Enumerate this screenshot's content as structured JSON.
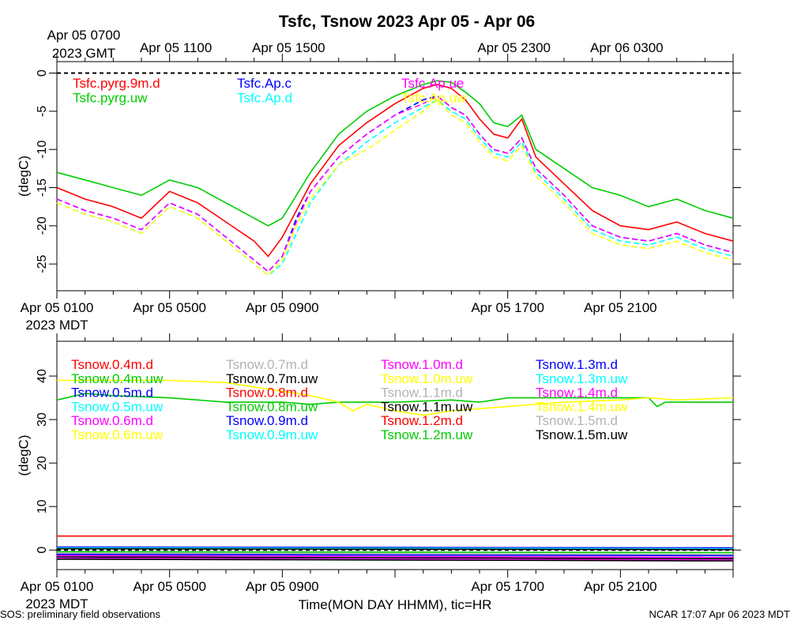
{
  "chart_data": [
    {
      "type": "line",
      "title": "Tsfc, Tsnow 2023 Apr 05 - Apr 06",
      "ylabel": "(degC)",
      "ylim": [
        -28.5,
        1.5
      ],
      "yticks": [
        0,
        -5,
        -10,
        -15,
        -20,
        -25
      ],
      "ytick_labels": [
        "0",
        "-5",
        "-10",
        "-15",
        "-20",
        "-25"
      ],
      "xlim_hours": [
        0,
        24
      ],
      "top_axis_ticks": [
        {
          "hour": 0,
          "line1": "Apr 05 0700",
          "line2": "2023 GMT"
        },
        {
          "hour": 4,
          "line1": "Apr 05 1100",
          "line2": ""
        },
        {
          "hour": 8,
          "line1": "Apr 05 1500",
          "line2": ""
        },
        {
          "hour": 16,
          "line1": "Apr 05 2300",
          "line2": ""
        },
        {
          "hour": 20,
          "line1": "Apr 06 0300",
          "line2": ""
        }
      ],
      "bottom_axis_ticks": [
        {
          "hour": 0,
          "line1": "Apr 05 0100",
          "line2": "2023 MDT"
        },
        {
          "hour": 4,
          "line1": "Apr 05 0500",
          "line2": ""
        },
        {
          "hour": 8,
          "line1": "Apr 05 0900",
          "line2": ""
        },
        {
          "hour": 16,
          "line1": "Apr 05 1700",
          "line2": ""
        },
        {
          "hour": 20,
          "line1": "Apr 05 2100",
          "line2": ""
        }
      ],
      "reference_line": 0,
      "legend": [
        {
          "name": "Tsfc.pyrg.9m.d",
          "color": "#ff0000"
        },
        {
          "name": "Tsfc.pyrg.uw",
          "color": "#00cc00"
        },
        {
          "name": "Tsfc.Ap.c",
          "color": "#0000ff"
        },
        {
          "name": "Tsfc.Ap.d",
          "color": "#00ffff"
        },
        {
          "name": "Tsfc.Ap.ue",
          "color": "#ff00ff"
        },
        {
          "name": "Tsfc.Ap.uw",
          "color": "#ffff00"
        }
      ],
      "series": [
        {
          "name": "Tsfc.pyrg.uw",
          "color": "#00cc00",
          "style": "solid",
          "x": [
            0,
            1,
            2,
            3,
            4,
            5,
            6,
            7,
            7.5,
            8,
            8.5,
            9,
            10,
            11,
            12,
            13,
            13.5,
            14,
            14.5,
            15,
            15.5,
            16,
            16.5,
            17,
            18,
            19,
            20,
            21,
            22,
            23,
            24
          ],
          "values": [
            -13,
            -14,
            -15,
            -16,
            -14,
            -15,
            -17,
            -19,
            -20,
            -19,
            -16,
            -13,
            -8,
            -5,
            -3,
            -1.5,
            -1,
            -1.2,
            -2.5,
            -4,
            -6.5,
            -7,
            -5.5,
            -10,
            -12.5,
            -15,
            -16,
            -17.5,
            -16.5,
            -18,
            -19
          ]
        },
        {
          "name": "Tsfc.pyrg.9m.d",
          "color": "#ff0000",
          "style": "solid",
          "x": [
            0,
            1,
            2,
            3,
            4,
            5,
            6,
            7,
            7.5,
            8,
            8.5,
            9,
            10,
            11,
            12,
            13,
            13.5,
            14,
            14.5,
            15,
            15.5,
            16,
            16.5,
            17,
            18,
            19,
            20,
            21,
            22,
            23,
            24
          ],
          "values": [
            -15,
            -16.5,
            -17.5,
            -19,
            -15.5,
            -17,
            -19.5,
            -22,
            -24,
            -21.5,
            -18,
            -14.5,
            -9.5,
            -6.5,
            -4,
            -2,
            -1.5,
            -2,
            -3.5,
            -6,
            -8,
            -8.5,
            -6,
            -11,
            -14.5,
            -18,
            -20,
            -20.5,
            -19.5,
            -21,
            -22
          ]
        },
        {
          "name": "Tsfc.Ap.c",
          "color": "#0000ff",
          "style": "dashed",
          "x": [
            0,
            1,
            2,
            3,
            4,
            5,
            6,
            7,
            7.5,
            8,
            8.5,
            9,
            10,
            11,
            12,
            13,
            13.5,
            14,
            14.5,
            15,
            15.5,
            16,
            16.5,
            17,
            18,
            19,
            20,
            21,
            22,
            23,
            24
          ],
          "values": [
            -16.5,
            -18,
            -19,
            -20.5,
            -17,
            -18.5,
            -21.5,
            -24.5,
            -26,
            -24,
            -19,
            -15.5,
            -11,
            -8,
            -5.5,
            -3.5,
            -3,
            -4.5,
            -5.5,
            -8,
            -10,
            -10.5,
            -8.5,
            -12.5,
            -16,
            -20,
            -21.5,
            -22,
            -21,
            -22.5,
            -23.5
          ]
        },
        {
          "name": "Tsfc.Ap.d",
          "color": "#00ffff",
          "style": "dashed",
          "x": [
            0,
            1,
            2,
            3,
            4,
            5,
            6,
            7,
            7.5,
            8,
            8.5,
            9,
            10,
            11,
            12,
            13,
            13.5,
            14,
            14.5,
            15,
            15.5,
            16,
            16.5,
            17,
            18,
            19,
            20,
            21,
            22,
            23,
            24
          ],
          "values": [
            -17,
            -18.5,
            -19.5,
            -21,
            -17.5,
            -19,
            -22,
            -25,
            -26.5,
            -25,
            -21,
            -17,
            -12,
            -9,
            -6.5,
            -4.5,
            -3.5,
            -5,
            -6,
            -8.5,
            -10.5,
            -11,
            -9,
            -13,
            -16.5,
            -20.5,
            -22,
            -22.5,
            -21.5,
            -23,
            -24
          ]
        },
        {
          "name": "Tsfc.Ap.ue",
          "color": "#ff00ff",
          "style": "dashed",
          "x": [
            0,
            1,
            2,
            3,
            4,
            5,
            6,
            7,
            7.5,
            8,
            8.5,
            9,
            10,
            11,
            12,
            13,
            13.5,
            14,
            14.5,
            15,
            15.5,
            16,
            16.5,
            17,
            18,
            19,
            20,
            21,
            22,
            23,
            24
          ],
          "values": [
            -16.5,
            -18,
            -19,
            -20.5,
            -17,
            -18.5,
            -21.5,
            -24.5,
            -26,
            -24,
            -19.5,
            -15.5,
            -11,
            -8,
            -5.5,
            -4,
            -3,
            -4.5,
            -5.5,
            -8,
            -10,
            -10.5,
            -8.5,
            -12.5,
            -16,
            -20,
            -21.5,
            -22,
            -21,
            -22.5,
            -23.5
          ]
        },
        {
          "name": "Tsfc.Ap.uw",
          "color": "#ffff00",
          "style": "dashed",
          "x": [
            0,
            1,
            2,
            3,
            4,
            5,
            6,
            7,
            7.5,
            8,
            8.5,
            9,
            10,
            11,
            12,
            13,
            13.5,
            14,
            14.5,
            15,
            15.5,
            16,
            16.5,
            17,
            18,
            19,
            20,
            21,
            22,
            23,
            24
          ],
          "values": [
            -17,
            -18.5,
            -19.5,
            -21,
            -17.5,
            -19,
            -22,
            -25,
            -26.5,
            -24.5,
            -20,
            -16.5,
            -12,
            -10,
            -7.5,
            -5,
            -3.5,
            -5.5,
            -6.5,
            -9,
            -11,
            -11.5,
            -9.5,
            -13.5,
            -17,
            -21,
            -22.5,
            -23,
            -22,
            -23.5,
            -24.5
          ]
        }
      ]
    },
    {
      "type": "line",
      "ylabel": "(degC)",
      "ylim": [
        -4.5,
        48
      ],
      "yticks": [
        0,
        10,
        20,
        30,
        40
      ],
      "ytick_labels": [
        "0",
        "10",
        "20",
        "30",
        "40"
      ],
      "xlim_hours": [
        0,
        24
      ],
      "bottom_axis_ticks": [
        {
          "hour": 0,
          "line1": "Apr 05 0100",
          "line2": "2023 MDT"
        },
        {
          "hour": 4,
          "line1": "Apr 05 0500",
          "line2": ""
        },
        {
          "hour": 8,
          "line1": "Apr 05 0900",
          "line2": ""
        },
        {
          "hour": 16,
          "line1": "Apr 05 1700",
          "line2": ""
        },
        {
          "hour": 20,
          "line1": "Apr 05 2100",
          "line2": ""
        }
      ],
      "reference_line": 0,
      "legend": [
        {
          "name": "Tsnow.0.4m.d",
          "color": "#ff0000"
        },
        {
          "name": "Tsnow.0.4m.uw",
          "color": "#00cc00"
        },
        {
          "name": "Tsnow.0.5m.d",
          "color": "#0000ff"
        },
        {
          "name": "Tsnow.0.5m.uw",
          "color": "#00ffff"
        },
        {
          "name": "Tsnow.0.6m.d",
          "color": "#ff00ff"
        },
        {
          "name": "Tsnow.0.6m.uw",
          "color": "#ffff00"
        },
        {
          "name": "Tsnow.0.7m.d",
          "color": "#b3b3b3"
        },
        {
          "name": "Tsnow.0.7m.uw",
          "color": "#000000"
        },
        {
          "name": "Tsnow.0.8m.d",
          "color": "#ff0000"
        },
        {
          "name": "Tsnow.0.8m.uw",
          "color": "#00cc00"
        },
        {
          "name": "Tsnow.0.9m.d",
          "color": "#0000ff"
        },
        {
          "name": "Tsnow.0.9m.uw",
          "color": "#00ffff"
        },
        {
          "name": "Tsnow.1.0m.d",
          "color": "#ff00ff"
        },
        {
          "name": "Tsnow.1.0m.uw",
          "color": "#ffff00"
        },
        {
          "name": "Tsnow.1.1m.d",
          "color": "#b3b3b3"
        },
        {
          "name": "Tsnow.1.1m.uw",
          "color": "#000000"
        },
        {
          "name": "Tsnow.1.2m.d",
          "color": "#ff0000"
        },
        {
          "name": "Tsnow.1.2m.uw",
          "color": "#00cc00"
        },
        {
          "name": "Tsnow.1.3m.d",
          "color": "#0000ff"
        },
        {
          "name": "Tsnow.1.3m.uw",
          "color": "#00ffff"
        },
        {
          "name": "Tsnow.1.4m.d",
          "color": "#ff00ff"
        },
        {
          "name": "Tsnow.1.4m.uw",
          "color": "#ffff00"
        },
        {
          "name": "Tsnow.1.5m.d",
          "color": "#b3b3b3"
        },
        {
          "name": "Tsnow.1.5m.uw",
          "color": "#000000"
        }
      ],
      "series": [
        {
          "name": "Tsnow.0.4m.uw",
          "color": "#00cc00",
          "x": [
            0,
            1,
            2,
            4,
            6,
            8,
            9,
            10,
            12,
            14,
            15,
            16,
            18,
            20,
            21,
            21.3,
            21.6,
            22,
            24
          ],
          "values": [
            34.5,
            36,
            35.5,
            35,
            34,
            34,
            33.5,
            34,
            34,
            34.5,
            34,
            35,
            35,
            35,
            35,
            33,
            34,
            34,
            34
          ]
        },
        {
          "name": "Tsnow.0.6m.uw",
          "color": "#ffff00",
          "x": [
            0,
            2,
            4,
            6,
            8,
            9,
            10,
            10.5,
            11,
            12,
            13,
            14,
            15,
            16,
            18,
            20,
            21,
            22,
            24
          ],
          "values": [
            39,
            39,
            39,
            38.5,
            36.5,
            35.5,
            34,
            32,
            33.5,
            32,
            31,
            32,
            32.5,
            33,
            34,
            34.5,
            35,
            34.5,
            35
          ]
        },
        {
          "name": "Tsnow.0.4m.d",
          "color": "#ff0000",
          "x": [
            0,
            24
          ],
          "values": [
            3.2,
            3.2
          ]
        },
        {
          "name": "Tsnow.0.5m.d",
          "color": "#0000ff",
          "x": [
            0,
            24
          ],
          "values": [
            0.7,
            0.5
          ]
        },
        {
          "name": "Tsnow.0.5m.uw",
          "color": "#00ffff",
          "x": [
            0,
            24
          ],
          "values": [
            0.5,
            0.3
          ]
        },
        {
          "name": "Tsnow.0.7m.uw",
          "color": "#000000",
          "x": [
            0,
            24
          ],
          "values": [
            0.3,
            0.1
          ]
        },
        {
          "name": "Tsnow.0.8m.uw",
          "color": "#00cc00",
          "x": [
            0,
            24
          ],
          "values": [
            -0.4,
            -0.6
          ]
        },
        {
          "name": "Tsnow.0.7m.d",
          "color": "#b3b3b3",
          "x": [
            0,
            24
          ],
          "values": [
            -0.7,
            -1.0
          ]
        },
        {
          "name": "Tsnow.0.9m.d",
          "color": "#0000ff",
          "x": [
            0,
            24
          ],
          "values": [
            -1.0,
            -1.3
          ]
        },
        {
          "name": "Tsnow.1.0m.d",
          "color": "#ff00ff",
          "x": [
            0,
            24
          ],
          "values": [
            -1.3,
            -1.7
          ]
        },
        {
          "name": "Tsnow.1.1m.uw",
          "color": "#000000",
          "x": [
            0,
            24
          ],
          "values": [
            -1.6,
            -2.0
          ]
        },
        {
          "name": "Tsnow.1.4m.d",
          "color": "#ff00ff",
          "x": [
            0,
            24
          ],
          "values": [
            -1.9,
            -2.3
          ]
        },
        {
          "name": "Tsnow.1.5m.uw",
          "color": "#000000",
          "x": [
            0,
            24
          ],
          "values": [
            -2.1,
            -2.5
          ]
        }
      ]
    }
  ],
  "xaxis_label": "Time(MON DAY HHMM), tic=HR",
  "footer_left": "SOS: preliminary field observations",
  "footer_right": "NCAR 17:07 Apr 06 2023 MDT"
}
